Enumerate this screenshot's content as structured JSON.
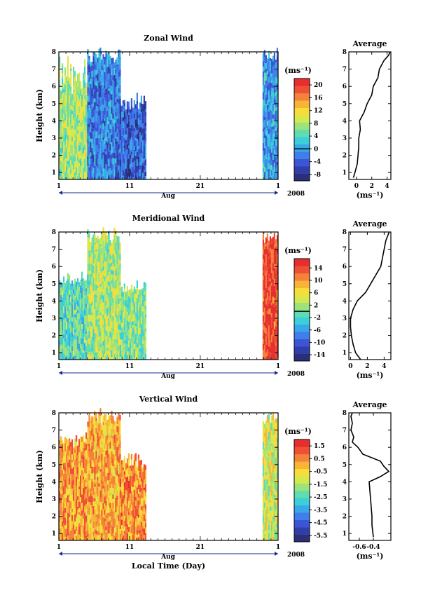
{
  "chart_data": [
    {
      "type": "heatmap",
      "title": "Zonal Wind",
      "ylabel": "Height (km)",
      "ylim": [
        0.6,
        8
      ],
      "yticks": [
        "1",
        "2",
        "3",
        "4",
        "5",
        "6",
        "7",
        "8"
      ],
      "xticks": [
        "1",
        "11",
        "21",
        "1"
      ],
      "month_label": "Aug",
      "year_label": "2008",
      "unit_label": "(ms⁻¹)",
      "colorbar": {
        "ticks": [
          "20",
          "16",
          "12",
          "8",
          "4",
          "0",
          "-4",
          "-8"
        ],
        "range": [
          -10,
          22
        ],
        "zero_line": 0
      },
      "data_blocks": [
        {
          "day_start": 1,
          "day_end": 5.0,
          "height_top": 7.4,
          "level": 0.55
        },
        {
          "day_start": 5.0,
          "day_end": 9.6,
          "height_top": 8.0,
          "level": 0.25
        },
        {
          "day_start": 9.6,
          "day_end": 13.2,
          "height_top": 5.2,
          "level": 0.18
        },
        {
          "day_start": 29.8,
          "day_end": 31.8,
          "height_top": 8.0,
          "level": 0.3
        }
      ],
      "average": {
        "title": "Average",
        "xlabel": "(ms⁻¹)",
        "xticks": [
          "0",
          "2",
          "4"
        ],
        "xlim": [
          -1,
          4.5
        ],
        "height": [
          0.7,
          1.0,
          1.5,
          2.0,
          2.5,
          3.0,
          3.5,
          4.0,
          4.5,
          5.0,
          5.5,
          6.0,
          6.5,
          7.0,
          7.5,
          7.8,
          8.0
        ],
        "values": [
          -0.4,
          -0.2,
          0.1,
          0.2,
          0.3,
          0.3,
          0.5,
          0.4,
          1.0,
          1.4,
          2.0,
          2.2,
          2.8,
          3.0,
          3.6,
          4.2,
          4.4
        ]
      }
    },
    {
      "type": "heatmap",
      "title": "Meridional Wind",
      "ylabel": "Height (km)",
      "ylim": [
        0.6,
        8
      ],
      "yticks": [
        "1",
        "2",
        "3",
        "4",
        "5",
        "6",
        "7",
        "8"
      ],
      "xticks": [
        "1",
        "11",
        "21",
        "1"
      ],
      "month_label": "Aug",
      "year_label": "2008",
      "unit_label": "(ms⁻¹)",
      "colorbar": {
        "ticks": [
          "14",
          "10",
          "6",
          "2",
          "-2",
          "-6",
          "-10",
          "-14"
        ],
        "range": [
          -16,
          17
        ],
        "zero_line": 0
      },
      "data_blocks": [
        {
          "day_start": 1,
          "day_end": 5.0,
          "height_top": 5.5,
          "level": 0.45
        },
        {
          "day_start": 5.0,
          "day_end": 9.6,
          "height_top": 8.0,
          "level": 0.55
        },
        {
          "day_start": 9.6,
          "day_end": 13.2,
          "height_top": 5.0,
          "level": 0.5
        },
        {
          "day_start": 29.8,
          "day_end": 31.8,
          "height_top": 8.0,
          "level": 0.92
        }
      ],
      "average": {
        "title": "Average",
        "xlabel": "(ms⁻¹)",
        "xticks": [
          "0",
          "2",
          "4"
        ],
        "xlim": [
          -0.2,
          4.8
        ],
        "height": [
          0.6,
          1.0,
          1.5,
          2.0,
          2.5,
          3.0,
          3.5,
          4.0,
          4.5,
          5.0,
          5.5,
          6.0,
          6.5,
          7.0,
          7.5,
          8.0
        ],
        "values": [
          1.2,
          0.6,
          0.3,
          0.1,
          0.0,
          0.0,
          0.3,
          0.8,
          1.8,
          2.4,
          3.0,
          3.6,
          3.8,
          4.0,
          4.2,
          4.6
        ]
      }
    },
    {
      "type": "heatmap",
      "title": "Vertical Wind",
      "ylabel": "Height (km)",
      "ylim": [
        0.6,
        8
      ],
      "yticks": [
        "1",
        "2",
        "3",
        "4",
        "5",
        "6",
        "7",
        "8"
      ],
      "xticks": [
        "1",
        "11",
        "21",
        "1"
      ],
      "month_label": "Aug",
      "year_label": "2008",
      "unit_label": "(ms⁻¹)",
      "xlabel": "Local Time (Day)",
      "colorbar": {
        "ticks": [
          "1.5",
          "0.5",
          "-0.5",
          "-1.5",
          "-2.5",
          "-3.5",
          "-4.5",
          "-5.5"
        ],
        "range": [
          -6,
          2
        ]
      },
      "data_blocks": [
        {
          "day_start": 1,
          "day_end": 5.0,
          "height_top": 6.6,
          "level": 0.78
        },
        {
          "day_start": 5.0,
          "day_end": 9.6,
          "height_top": 8.0,
          "level": 0.75
        },
        {
          "day_start": 9.6,
          "day_end": 13.2,
          "height_top": 5.5,
          "level": 0.8
        },
        {
          "day_start": 29.8,
          "day_end": 31.8,
          "height_top": 8.0,
          "level": 0.6
        }
      ],
      "average": {
        "title": "Average",
        "xlabel": "(ms⁻¹)",
        "xticks": [
          "-0.6",
          "-0.4"
        ],
        "xlim": [
          -0.75,
          -0.15
        ],
        "height": [
          0.8,
          1.5,
          2.0,
          2.5,
          3.0,
          3.5,
          4.0,
          4.3,
          4.6,
          4.9,
          5.2,
          5.6,
          6.0,
          6.3,
          6.6,
          7.0,
          7.4,
          7.8,
          8.0
        ],
        "values": [
          -0.4,
          -0.42,
          -0.42,
          -0.43,
          -0.44,
          -0.45,
          -0.46,
          -0.3,
          -0.18,
          -0.25,
          -0.3,
          -0.55,
          -0.62,
          -0.7,
          -0.68,
          -0.72,
          -0.7,
          -0.72,
          -0.7
        ]
      }
    }
  ]
}
